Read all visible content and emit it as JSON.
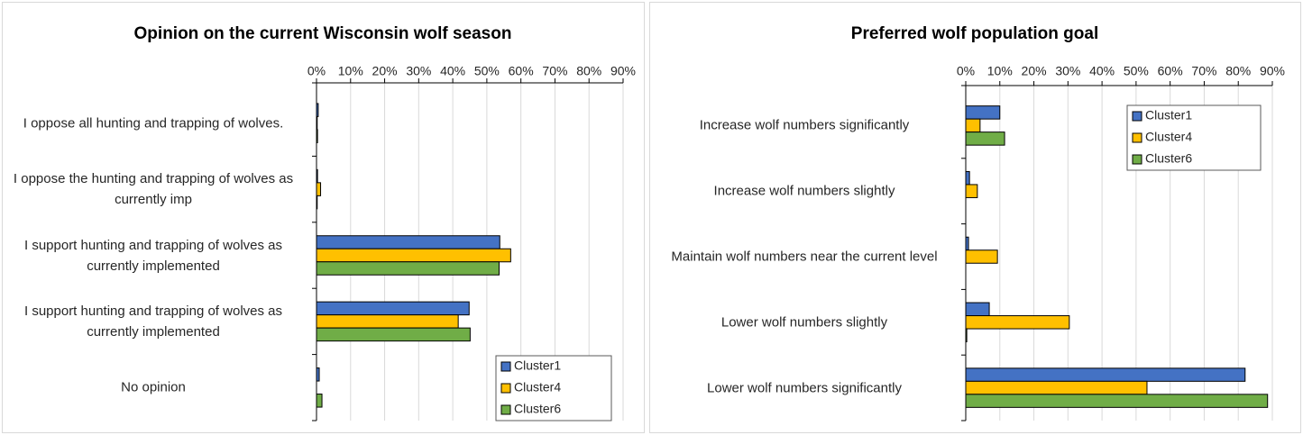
{
  "chart_data": [
    {
      "type": "hbar",
      "title": "Opinion on the current Wisconsin wolf season",
      "categories": [
        "I oppose all hunting and trapping of wolves.",
        "I oppose the hunting and trapping of wolves as currently imp",
        "I support hunting and trapping of wolves as currently implemented",
        "I support hunting and trapping of wolves as currently implemented",
        "No opinion"
      ],
      "series": [
        {
          "name": "Cluster1",
          "color": "#4472c4",
          "values": [
            0.5,
            0.3,
            53.8,
            44.8,
            0.8
          ]
        },
        {
          "name": "Cluster4",
          "color": "#ffc000",
          "values": [
            0.2,
            1.2,
            57,
            41.6,
            0
          ]
        },
        {
          "name": "Cluster6",
          "color": "#70ad47",
          "values": [
            0.3,
            0.2,
            53.6,
            45.1,
            1.6
          ]
        }
      ],
      "xlim": [
        0,
        90
      ],
      "xticks": [
        {
          "value": 0,
          "label": "0%"
        },
        {
          "value": 10,
          "label": "10%"
        },
        {
          "value": 20,
          "label": "20%"
        },
        {
          "value": 30,
          "label": "30%"
        },
        {
          "value": 40,
          "label": "40%"
        },
        {
          "value": 50,
          "label": "50%"
        },
        {
          "value": 60,
          "label": "60%"
        },
        {
          "value": 70,
          "label": "70%"
        },
        {
          "value": 80,
          "label": "80%"
        },
        {
          "value": 90,
          "label": "90%"
        }
      ],
      "grid": true,
      "legend": "lower right"
    },
    {
      "type": "hbar",
      "title": "Preferred wolf population goal",
      "categories": [
        "Increase wolf numbers significantly",
        "Increase wolf numbers slightly",
        "Maintain wolf numbers near the current level",
        "Lower wolf numbers slightly",
        "Lower wolf numbers significantly"
      ],
      "series": [
        {
          "name": "Cluster1",
          "color": "#4472c4",
          "values": [
            10,
            1.1,
            0.8,
            6.9,
            82
          ]
        },
        {
          "name": "Cluster4",
          "color": "#ffc000",
          "values": [
            4.2,
            3.4,
            9.3,
            30.4,
            53.2
          ]
        },
        {
          "name": "Cluster6",
          "color": "#70ad47",
          "values": [
            11.4,
            0,
            0,
            0.3,
            88.6
          ]
        }
      ],
      "xlim": [
        0,
        90
      ],
      "xticks": [
        {
          "value": 0,
          "label": "0%"
        },
        {
          "value": 10,
          "label": "10%"
        },
        {
          "value": 20,
          "label": "20%"
        },
        {
          "value": 30,
          "label": "30%"
        },
        {
          "value": 40,
          "label": "40%"
        },
        {
          "value": 50,
          "label": "50%"
        },
        {
          "value": 60,
          "label": "60%"
        },
        {
          "value": 70,
          "label": "70%"
        },
        {
          "value": 80,
          "label": "80%"
        },
        {
          "value": 90,
          "label": "90%"
        }
      ],
      "grid": true,
      "legend": "upper right"
    }
  ]
}
